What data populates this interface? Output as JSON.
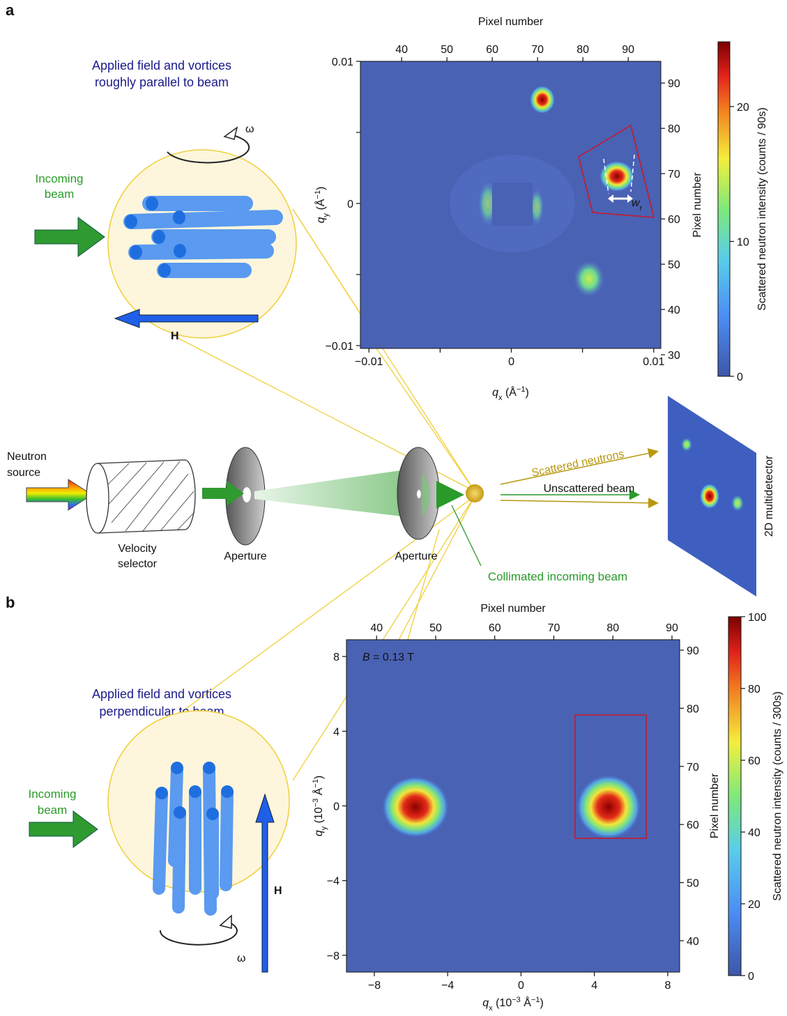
{
  "panel_a": {
    "label": "a",
    "inset_title": [
      "Applied field and vortices",
      "roughly parallel to beam"
    ],
    "incoming_beam": [
      "Incoming",
      "beam"
    ],
    "rotation_symbol": "ω",
    "field_symbol": "H",
    "heatmap": {
      "x_label": [
        {
          "text": "q",
          "style": "italic"
        },
        {
          "text": "x",
          "style": "sub"
        },
        {
          "text": " (Å",
          "style": "plain"
        },
        {
          "text": "−1",
          "style": "sup"
        },
        {
          "text": ")",
          "style": "plain"
        }
      ],
      "y_label": [
        {
          "text": "q",
          "style": "italic"
        },
        {
          "text": "y",
          "style": "sub"
        },
        {
          "text": " (Å",
          "style": "plain"
        },
        {
          "text": "−1",
          "style": "sup"
        },
        {
          "text": ")",
          "style": "plain"
        }
      ],
      "xlim": [
        -0.0106,
        0.0105
      ],
      "xticks": [
        {
          "value": -0.01,
          "label": "−0.01"
        },
        0,
        0.01
      ],
      "minor_xticks": [
        -0.005,
        0.005
      ],
      "ylim": [
        -0.0102,
        0.01
      ],
      "yticks": [
        {
          "value": -0.01,
          "label": "−0.01"
        },
        0,
        0.01
      ],
      "minor_yticks": [
        -0.005,
        0.005
      ],
      "top_label": "Pixel number",
      "top_xlim": [
        30.9,
        97.2
      ],
      "top_xticks": [
        40,
        50,
        60,
        70,
        80,
        90
      ],
      "right_label": "Pixel number",
      "right_ylim": [
        31.4,
        94.8
      ],
      "right_yticks": [
        30,
        40,
        50,
        60,
        70,
        80,
        90
      ],
      "annotation": [
        {
          "text": "w",
          "style": "italic"
        },
        {
          "text": "r",
          "style": "sub"
        }
      ],
      "colorbar": {
        "label": "Scattered neutron intensity (counts / 90s)",
        "clim": [
          0,
          24.8
        ],
        "ticks": [
          0,
          10,
          20
        ]
      }
    }
  },
  "schematic": {
    "source": [
      "Neutron",
      "source"
    ],
    "selector": [
      "Velocity",
      "selector"
    ],
    "aperture_1": "Aperture",
    "aperture_2": "Aperture",
    "scattered": "Scattered neutrons",
    "unscattered": "Unscattered beam",
    "collimated": "Collimated incoming beam",
    "detector": "2D multidetector"
  },
  "panel_b": {
    "label": "b",
    "inset_title": [
      "Applied field and vortices",
      "perpendicular to beam"
    ],
    "incoming_beam": [
      "Incoming",
      "beam"
    ],
    "rotation_symbol": "ω",
    "field_symbol": "H",
    "heatmap": {
      "x_label": [
        {
          "text": "q",
          "style": "italic"
        },
        {
          "text": "x",
          "style": "sub"
        },
        {
          "text": " (10",
          "style": "plain"
        },
        {
          "text": "−3",
          "style": "sup"
        },
        {
          "text": " Å",
          "style": "plain"
        },
        {
          "text": "−1",
          "style": "sup"
        },
        {
          "text": ")",
          "style": "plain"
        }
      ],
      "y_label": [
        {
          "text": "q",
          "style": "italic"
        },
        {
          "text": "y",
          "style": "sub"
        },
        {
          "text": " (10",
          "style": "plain"
        },
        {
          "text": "−3",
          "style": "sup"
        },
        {
          "text": " Å",
          "style": "plain"
        },
        {
          "text": "−1",
          "style": "sup"
        },
        {
          "text": ")",
          "style": "plain"
        }
      ],
      "xlim": [
        -9.52,
        8.65
      ],
      "xticks": [
        {
          "value": -8,
          "label": "−8"
        },
        {
          "value": -4,
          "label": "−4"
        },
        0,
        4,
        8
      ],
      "minor_xticks": [],
      "ylim": [
        -8.9,
        8.9
      ],
      "yticks": [
        {
          "value": -8,
          "label": "−8"
        },
        {
          "value": -4,
          "label": "−4"
        },
        0,
        4,
        8
      ],
      "minor_yticks": [],
      "top_label": "Pixel number",
      "top_xlim": [
        34.9,
        91.3
      ],
      "top_xticks": [
        40,
        50,
        60,
        70,
        80,
        90
      ],
      "right_label": "Pixel number",
      "right_ylim": [
        34.6,
        91.8
      ],
      "right_yticks": [
        40,
        50,
        60,
        70,
        80,
        90
      ],
      "annotation": [
        {
          "text": "B",
          "style": "italic"
        },
        {
          "text": " = 0.13 T",
          "style": "plain"
        }
      ],
      "colorbar": {
        "label": "Scattered neutron intensity (counts / 300s)",
        "clim": [
          0,
          100
        ],
        "ticks": [
          0,
          20,
          40,
          60,
          80,
          100
        ]
      }
    }
  }
}
